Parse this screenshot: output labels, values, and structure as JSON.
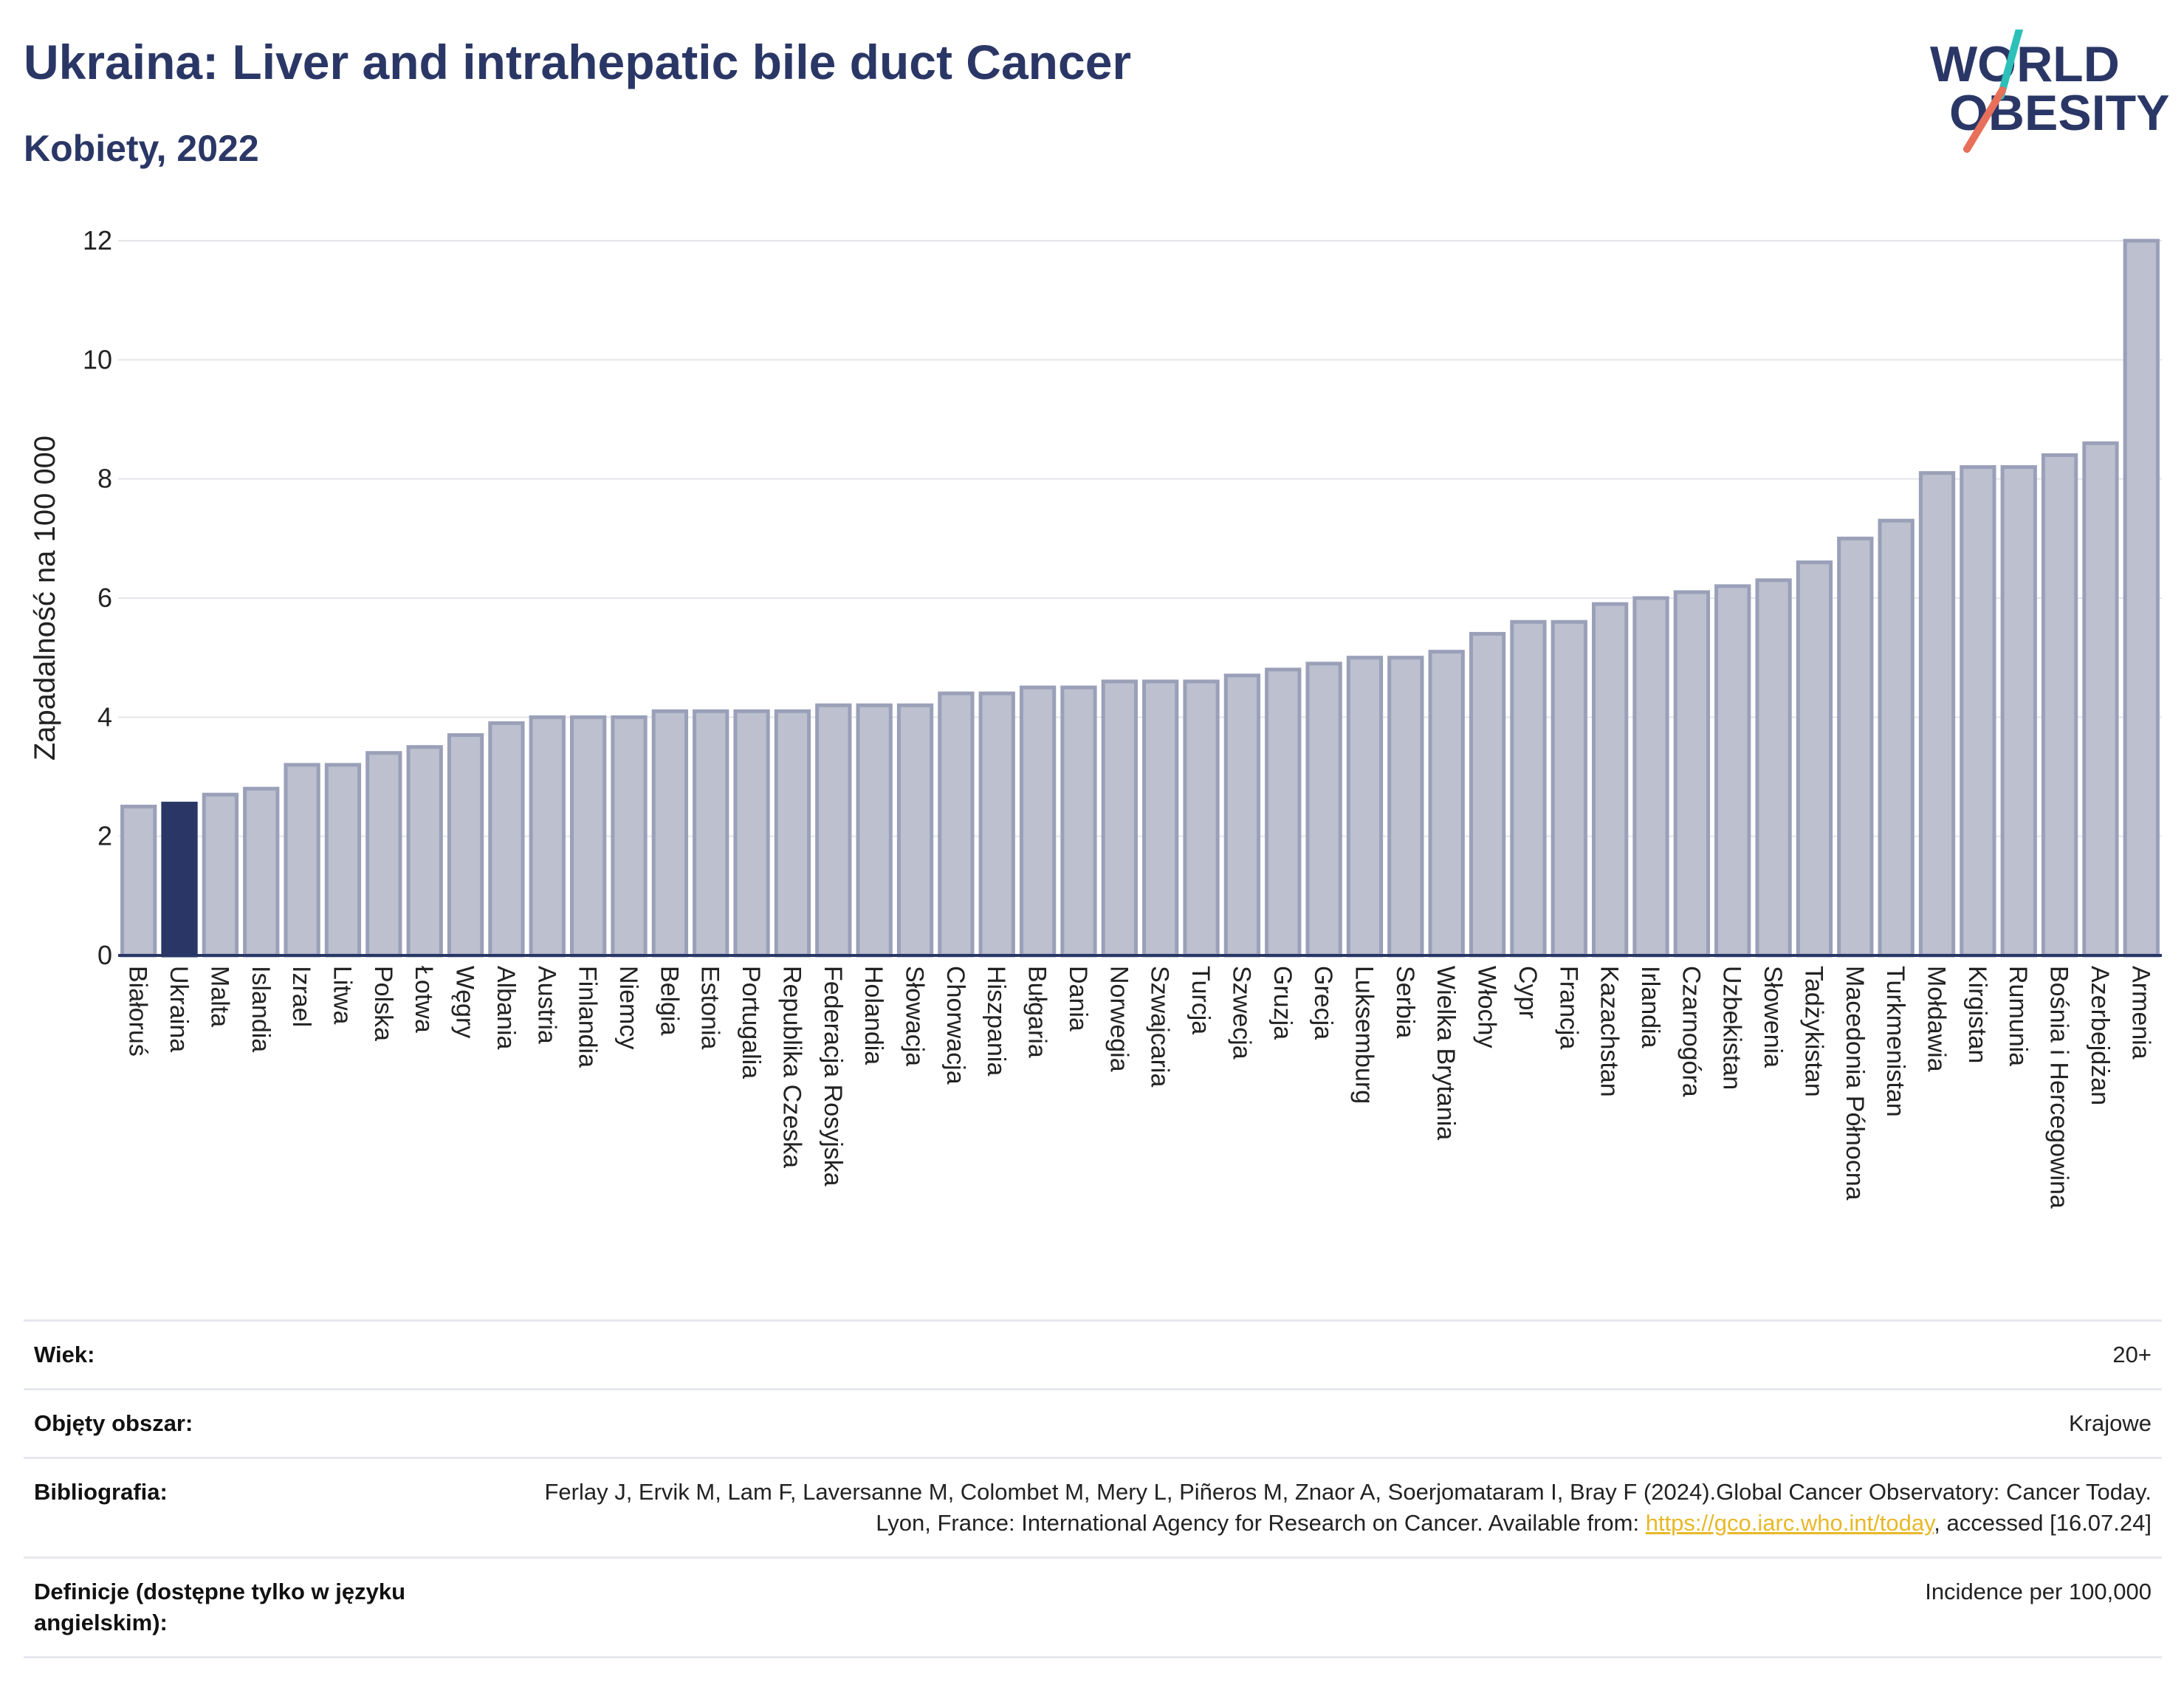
{
  "header": {
    "title": "Ukraina: Liver and intrahepatic bile duct Cancer",
    "subtitle": "Kobiety, 2022",
    "logo_line1": "WORLD",
    "logo_line2": "OBESITY"
  },
  "colors": {
    "highlight": "#2a3766",
    "bar": "#bcc0cf",
    "bar_stroke": "#9aa0b8",
    "grid": "#e3e5ea",
    "logo_teal": "#2cc0b8",
    "logo_coral": "#e8705a",
    "link": "#e8b828"
  },
  "chart_data": {
    "type": "bar",
    "ylabel": "Zapadalność na 100 000",
    "xlabel": "",
    "ylim": [
      0,
      12
    ],
    "yticks": [
      0,
      2,
      4,
      6,
      8,
      10,
      12
    ],
    "grid": true,
    "highlight": "Ukraina",
    "categories": [
      "Białoruś",
      "Ukraina",
      "Malta",
      "Islandia",
      "Izrael",
      "Litwa",
      "Polska",
      "Łotwa",
      "Węgry",
      "Albania",
      "Austria",
      "Finlandia",
      "Niemcy",
      "Belgia",
      "Estonia",
      "Portugalia",
      "Republika Czeska",
      "Federacja Rosyjska",
      "Holandia",
      "Słowacja",
      "Chorwacja",
      "Hiszpania",
      "Bułgaria",
      "Dania",
      "Norwegia",
      "Szwajcaria",
      "Turcja",
      "Szwecja",
      "Gruzja",
      "Grecja",
      "Luksemburg",
      "Serbia",
      "Wielka Brytania",
      "Włochy",
      "Cypr",
      "Francja",
      "Kazachstan",
      "Irlandia",
      "Czarnogóra",
      "Uzbekistan",
      "Słowenia",
      "Tadżykistan",
      "Macedonia Północna",
      "Turkmenistan",
      "Mołdawia",
      "Kirgistan",
      "Rumunia",
      "Bośnia i Hercegowina",
      "Azerbejdżan",
      "Armenia"
    ],
    "values": [
      2.5,
      2.55,
      2.7,
      2.8,
      3.2,
      3.2,
      3.4,
      3.5,
      3.7,
      3.9,
      4.0,
      4.0,
      4.0,
      4.1,
      4.1,
      4.1,
      4.1,
      4.2,
      4.2,
      4.2,
      4.4,
      4.4,
      4.5,
      4.5,
      4.6,
      4.6,
      4.6,
      4.7,
      4.8,
      4.9,
      5.0,
      5.0,
      5.1,
      5.4,
      5.6,
      5.6,
      5.9,
      6.0,
      6.1,
      6.2,
      6.3,
      6.6,
      7.0,
      7.3,
      8.1,
      8.2,
      8.2,
      8.4,
      8.6,
      12.0
    ]
  },
  "meta": {
    "age_label": "Wiek:",
    "age_value": "20+",
    "area_label": "Objęty obszar:",
    "area_value": "Krajowe",
    "biblio_label": "Bibliografia:",
    "biblio_text_1": "Ferlay J, Ervik M, Lam F, Laversanne M, Colombet M, Mery L, Piñeros M, Znaor A, Soerjomataram I, Bray F (2024).Global Cancer Observatory: Cancer Today. Lyon, France: International Agency for Research on Cancer. Available from: ",
    "biblio_link": "https://gco.iarc.who.int/today",
    "biblio_text_2": ", accessed [16.07.24]",
    "def_label": "Definicje (dostępne tylko w języku angielskim):",
    "def_value": "Incidence per 100,000"
  }
}
